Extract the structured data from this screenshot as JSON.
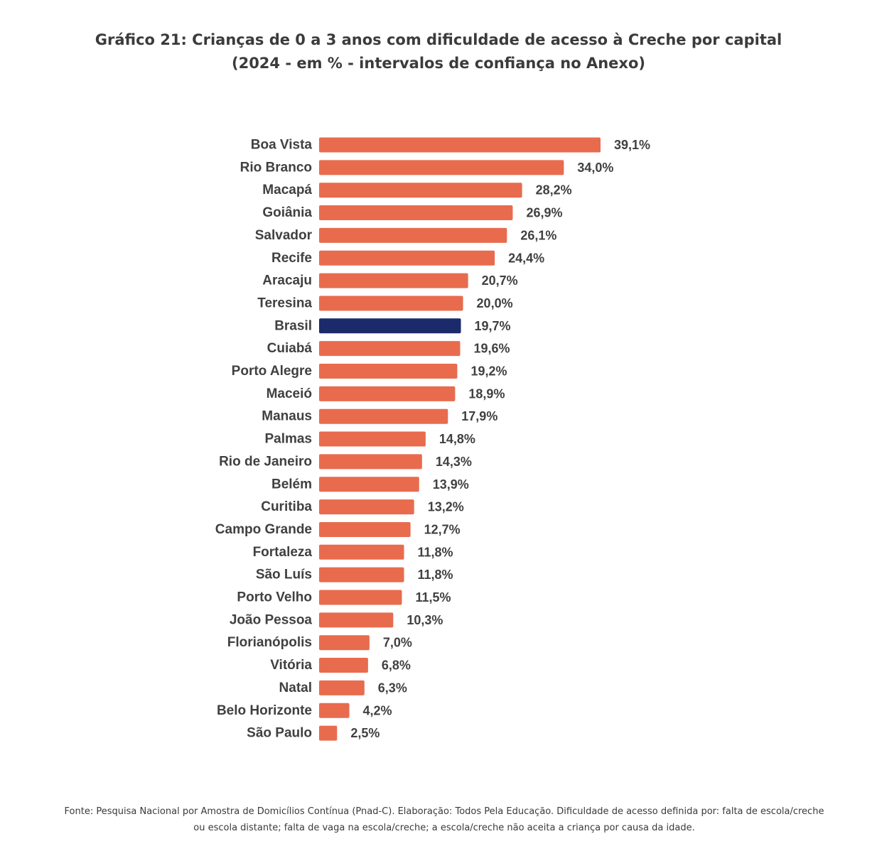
{
  "title": {
    "line1": "Gráfico 21: Crianças de 0 a 3 anos com dificuldade de acesso à Creche por capital",
    "line2": "(2024 - em % - intervalos de confiança no Anexo)"
  },
  "chart_data": {
    "type": "bar",
    "orientation": "horizontal",
    "title": "Gráfico 21: Crianças de 0 a 3 anos com dificuldade de acesso à Creche por capital (2024 - em % - intervalos de confiança no Anexo)",
    "xlabel": "",
    "ylabel": "",
    "xlim": [
      0,
      39.1
    ],
    "grid": false,
    "categories": [
      "Boa Vista",
      "Rio Branco",
      "Macapá",
      "Goiânia",
      "Salvador",
      "Recife",
      "Aracaju",
      "Teresina",
      "Brasil",
      "Cuiabá",
      "Porto Alegre",
      "Maceió",
      "Manaus",
      "Palmas",
      "Rio de Janeiro",
      "Belém",
      "Curitiba",
      "Campo Grande",
      "Fortaleza",
      "São Luís",
      "Porto Velho",
      "João Pessoa",
      "Florianópolis",
      "Vitória",
      "Natal",
      "Belo Horizonte",
      "São Paulo"
    ],
    "values": [
      39.1,
      34.0,
      28.2,
      26.9,
      26.1,
      24.4,
      20.7,
      20.0,
      19.7,
      19.6,
      19.2,
      18.9,
      17.9,
      14.8,
      14.3,
      13.9,
      13.2,
      12.7,
      11.8,
      11.8,
      11.5,
      10.3,
      7.0,
      6.8,
      6.3,
      4.2,
      2.5
    ],
    "value_labels": [
      "39,1%",
      "34,0%",
      "28,2%",
      "26,9%",
      "26,1%",
      "24,4%",
      "20,7%",
      "20,0%",
      "19,7%",
      "19,6%",
      "19,2%",
      "18,9%",
      "17,9%",
      "14,8%",
      "14,3%",
      "13,9%",
      "13,2%",
      "12,7%",
      "11,8%",
      "11,8%",
      "11,5%",
      "10,3%",
      "7,0%",
      "6,8%",
      "6,3%",
      "4,2%",
      "2,5%"
    ],
    "highlight": "Brasil",
    "colors": {
      "bar": "#e86b4e",
      "highlight": "#1b2a6b"
    }
  },
  "source": {
    "line1": "Fonte: Pesquisa Nacional por Amostra de Domicílios Contínua (Pnad-C). Elaboração: Todos Pela Educação. Dificuldade de acesso definida por: falta de escola/creche",
    "line2": "ou escola distante; falta de vaga na escola/creche; a escola/creche não aceita a criança por causa da idade."
  }
}
